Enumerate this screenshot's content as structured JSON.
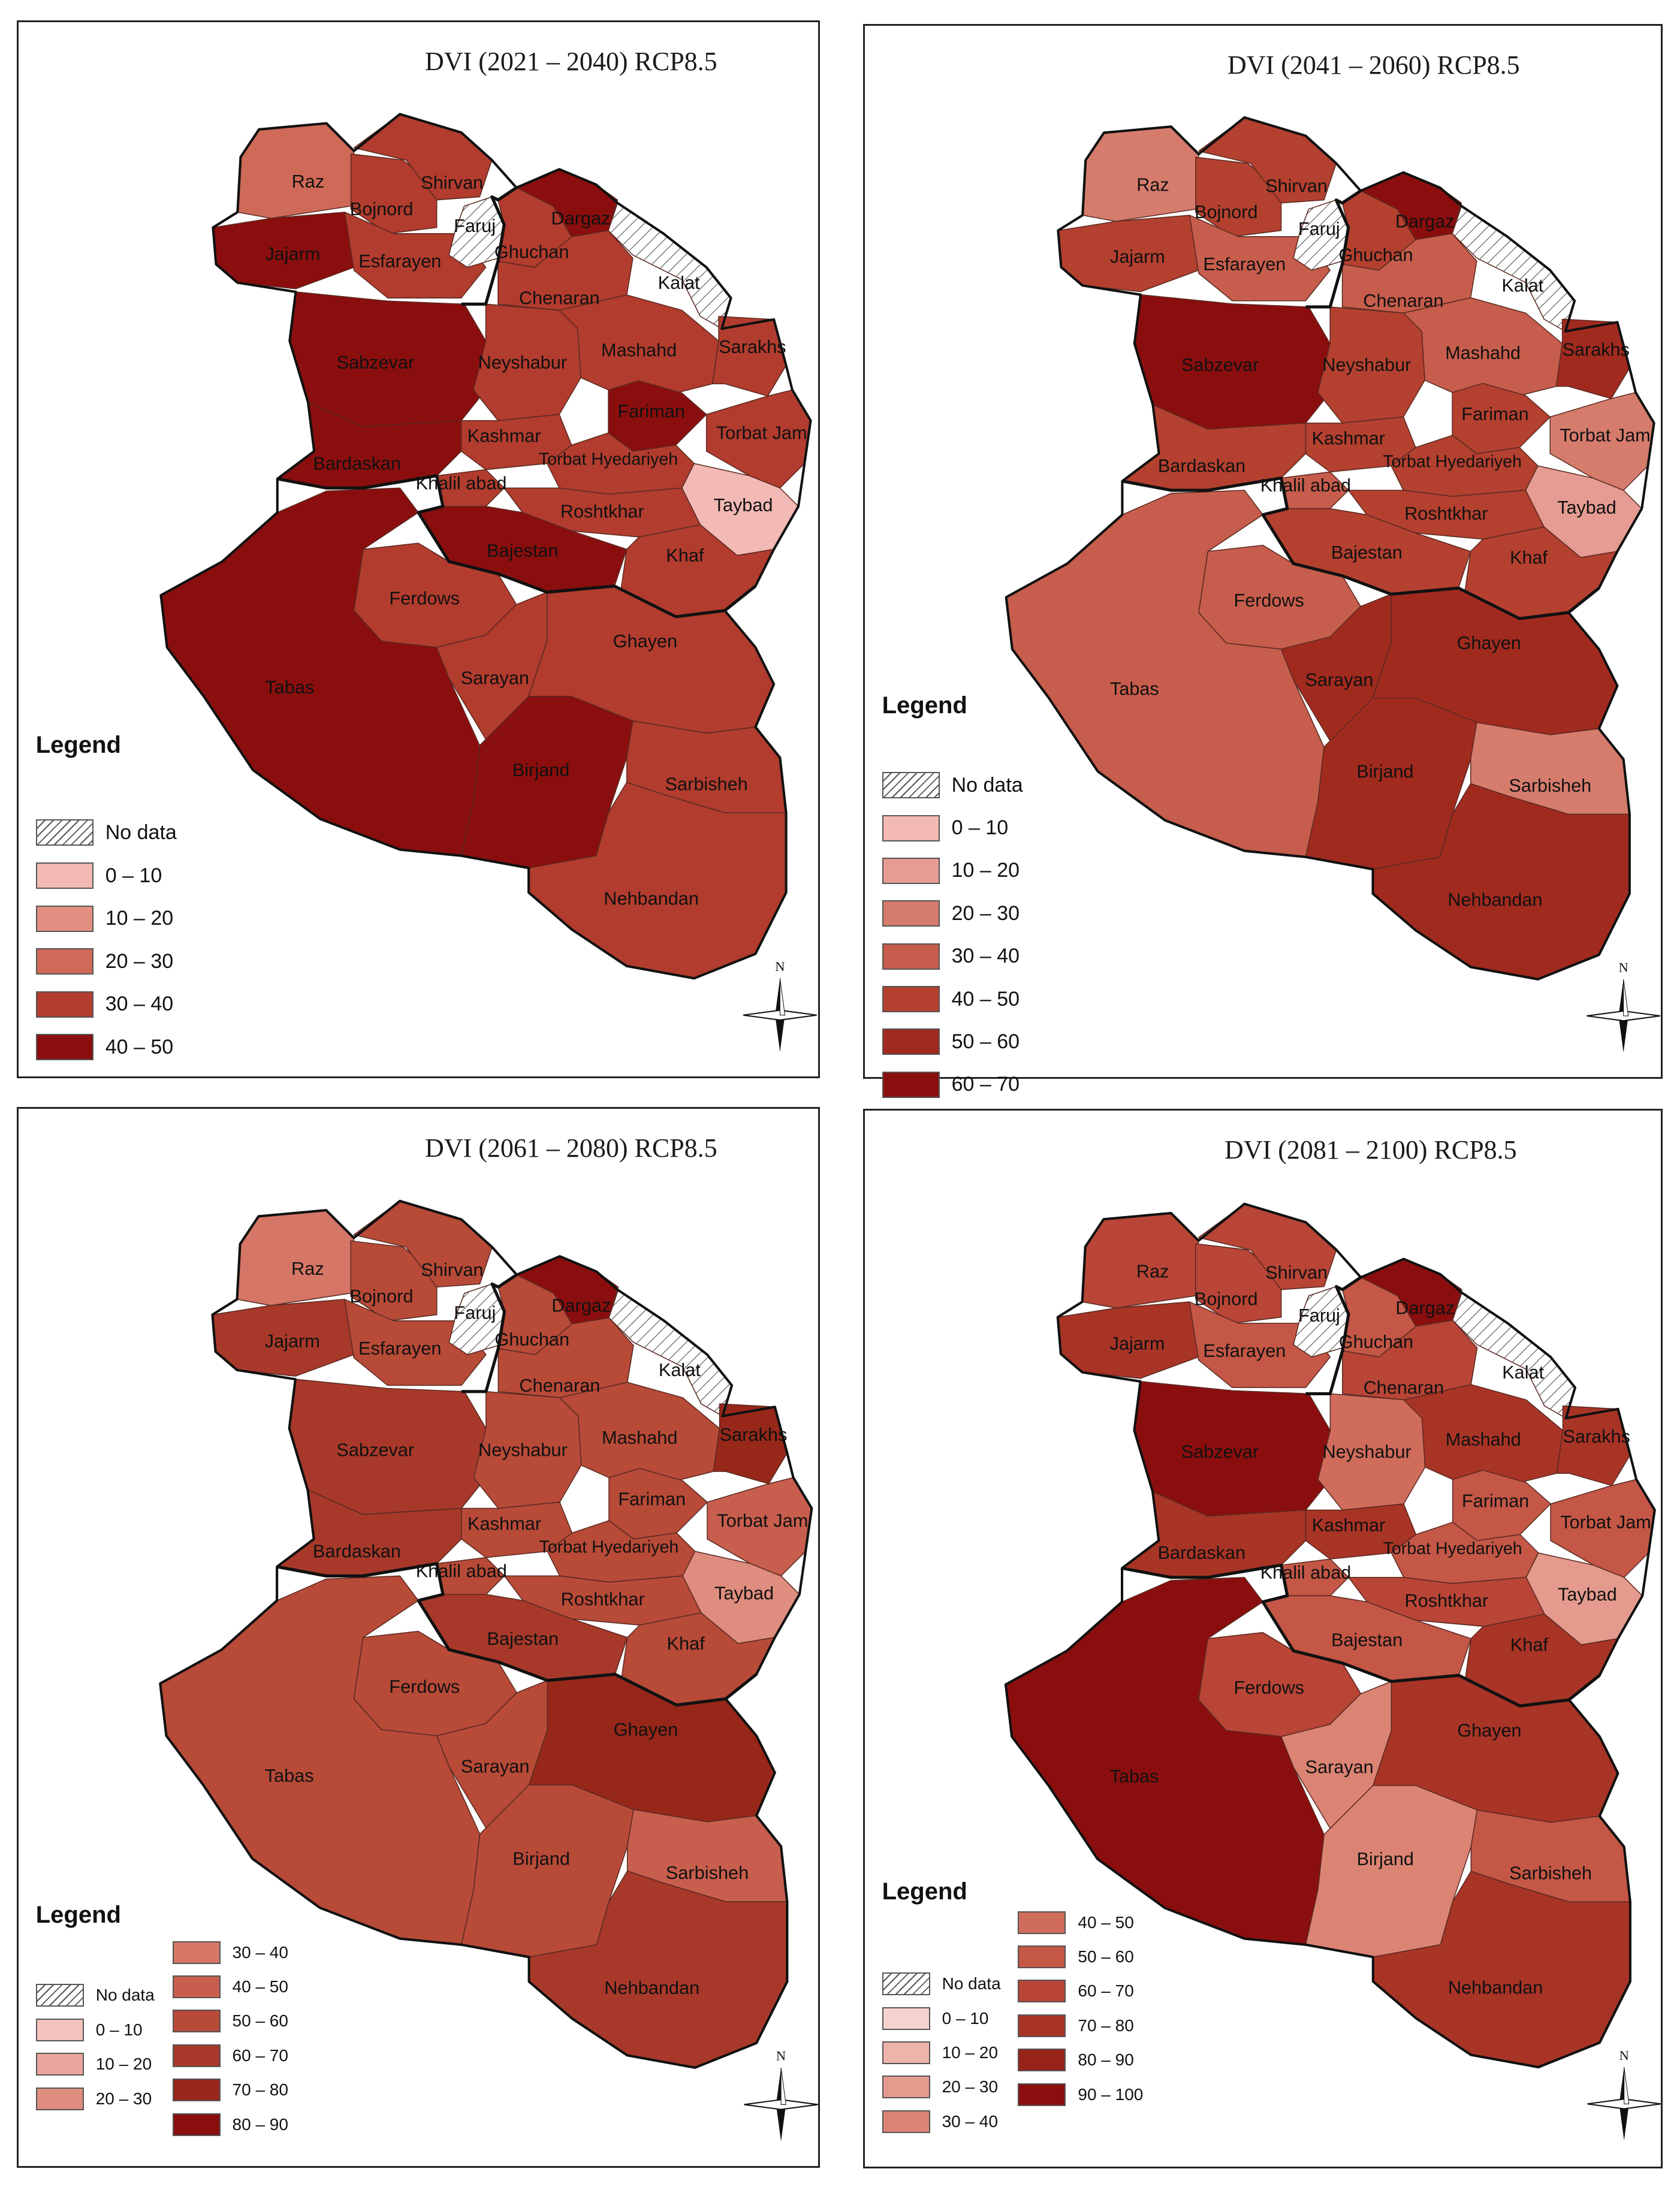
{
  "panels": [
    {
      "id": "p1",
      "title": "DVI (2021 – 2040) RCP8.5",
      "legend_title": "Legend",
      "legend": [
        {
          "label": "No data",
          "color": "hatch"
        },
        {
          "label": "0 – 10",
          "color": "#f3b9b4"
        },
        {
          "label": "10 – 20",
          "color": "#e39082"
        },
        {
          "label": "20 – 30",
          "color": "#cf6a58"
        },
        {
          "label": "30 – 40",
          "color": "#b23c2e"
        },
        {
          "label": "40 – 50",
          "color": "#8b0e0e"
        }
      ],
      "regions": {
        "Raz": "#cf6a58",
        "Bojnord": "#b23c2e",
        "Shirvan": "#b23c2e",
        "Jajarm": "#8b0e0e",
        "Esfarayen": "#b23c2e",
        "Faruj": "nodata",
        "Ghuchan": "#b23c2e",
        "Dargaz": "#8b0e0e",
        "Kalat": "nodata",
        "Chenaran": "#b23c2e",
        "Sabzevar": "#8b0e0e",
        "Neyshabur": "#b23c2e",
        "Mashahd": "#b23c2e",
        "Sarakhs": "#b23c2e",
        "Fariman": "#8b0e0e",
        "Torbat Jam": "#b23c2e",
        "Kashmar": "#b23c2e",
        "Bardaskan": "#8b0e0e",
        "Khalil abad": "#b23c2e",
        "Torbat Hyedariyeh": "#b23c2e",
        "Taybad": "#f3b9b4",
        "Roshtkhar": "#b23c2e",
        "Bajestan": "#8b0e0e",
        "Khaf": "#b23c2e",
        "Ferdows": "#b23c2e",
        "Tabas": "#8b0e0e",
        "Sarayan": "#b23c2e",
        "Ghayen": "#b23c2e",
        "Birjand": "#8b0e0e",
        "Sarbisheh": "#b23c2e",
        "Nehbandan": "#b23c2e"
      }
    },
    {
      "id": "p2",
      "title": "DVI (2041 – 2060) RCP8.5",
      "legend_title": "Legend",
      "legend": [
        {
          "label": "No data",
          "color": "hatch"
        },
        {
          "label": "0 – 10",
          "color": "#f3b9b4"
        },
        {
          "label": "10 – 20",
          "color": "#e69c92"
        },
        {
          "label": "20 – 30",
          "color": "#d67c6c"
        },
        {
          "label": "30 – 40",
          "color": "#c75d4c"
        },
        {
          "label": "40 – 50",
          "color": "#b4402f"
        },
        {
          "label": "50 – 60",
          "color": "#a12a1f"
        },
        {
          "label": "60 – 70",
          "color": "#8b0e0e"
        }
      ],
      "regions": {
        "Raz": "#d67c6c",
        "Bojnord": "#b4402f",
        "Shirvan": "#b4402f",
        "Jajarm": "#b4402f",
        "Esfarayen": "#c75d4c",
        "Faruj": "nodata",
        "Ghuchan": "#b4402f",
        "Dargaz": "#8b0e0e",
        "Kalat": "nodata",
        "Chenaran": "#c75d4c",
        "Sabzevar": "#8b0e0e",
        "Neyshabur": "#b4402f",
        "Mashahd": "#c75d4c",
        "Sarakhs": "#a12a1f",
        "Fariman": "#b4402f",
        "Torbat Jam": "#d67c6c",
        "Kashmar": "#b4402f",
        "Bardaskan": "#b4402f",
        "Khalil abad": "#c75d4c",
        "Torbat Hyedariyeh": "#b4402f",
        "Taybad": "#e69c92",
        "Roshtkhar": "#b4402f",
        "Bajestan": "#b4402f",
        "Khaf": "#b4402f",
        "Ferdows": "#c75d4c",
        "Tabas": "#c75d4c",
        "Sarayan": "#a12a1f",
        "Ghayen": "#a12a1f",
        "Birjand": "#a12a1f",
        "Sarbisheh": "#d67c6c",
        "Nehbandan": "#a12a1f"
      }
    },
    {
      "id": "p3",
      "title": "DVI (2061 – 2080) RCP8.5",
      "legend_title": "Legend",
      "legend": [
        {
          "label": "No data",
          "color": "hatch"
        },
        {
          "label": "0 – 10",
          "color": "#f3c2be"
        },
        {
          "label": "10 – 20",
          "color": "#eaa59c"
        },
        {
          "label": "20 – 30",
          "color": "#df8d7e"
        },
        {
          "label": "30 – 40",
          "color": "#d57666"
        },
        {
          "label": "40 – 50",
          "color": "#c85e4d"
        },
        {
          "label": "50 – 60",
          "color": "#b84a38"
        },
        {
          "label": "60 – 70",
          "color": "#a8392a"
        },
        {
          "label": "70 – 80",
          "color": "#962719"
        },
        {
          "label": "80 – 90",
          "color": "#8b0e0e"
        }
      ],
      "regions": {
        "Raz": "#d57666",
        "Bojnord": "#b84a38",
        "Shirvan": "#b84a38",
        "Jajarm": "#a8392a",
        "Esfarayen": "#b84a38",
        "Faruj": "nodata",
        "Ghuchan": "#b84a38",
        "Dargaz": "#8b0e0e",
        "Kalat": "nodata",
        "Chenaran": "#b84a38",
        "Sabzevar": "#a8392a",
        "Neyshabur": "#b84a38",
        "Mashahd": "#b84a38",
        "Sarakhs": "#962719",
        "Fariman": "#b84a38",
        "Torbat Jam": "#c85e4d",
        "Kashmar": "#b84a38",
        "Bardaskan": "#a8392a",
        "Khalil abad": "#b84a38",
        "Torbat Hyedariyeh": "#b84a38",
        "Taybad": "#df8d7e",
        "Roshtkhar": "#b84a38",
        "Bajestan": "#a8392a",
        "Khaf": "#b84a38",
        "Ferdows": "#b84a38",
        "Tabas": "#b84a38",
        "Sarayan": "#b84a38",
        "Ghayen": "#962719",
        "Birjand": "#b84a38",
        "Sarbisheh": "#c85e4d",
        "Nehbandan": "#a8392a"
      }
    },
    {
      "id": "p4",
      "title": "DVI (2081 – 2100) RCP8.5",
      "legend_title": "Legend",
      "legend": [
        {
          "label": "No data",
          "color": "hatch"
        },
        {
          "label": "0 – 10",
          "color": "#f6d2cf"
        },
        {
          "label": "10 – 20",
          "color": "#eeb3ab"
        },
        {
          "label": "20 – 30",
          "color": "#e59a8e"
        },
        {
          "label": "30 – 40",
          "color": "#dc8474"
        },
        {
          "label": "40 – 50",
          "color": "#d06c5b"
        },
        {
          "label": "50 – 60",
          "color": "#c45746"
        },
        {
          "label": "60 – 70",
          "color": "#b84536"
        },
        {
          "label": "70 – 80",
          "color": "#a83426"
        },
        {
          "label": "80 – 90",
          "color": "#962219"
        },
        {
          "label": "90 – 100",
          "color": "#8b0e0e"
        }
      ],
      "regions": {
        "Raz": "#b84536",
        "Bojnord": "#b84536",
        "Shirvan": "#b84536",
        "Jajarm": "#a83426",
        "Esfarayen": "#c45746",
        "Faruj": "nodata",
        "Ghuchan": "#c45746",
        "Dargaz": "#8b0e0e",
        "Kalat": "nodata",
        "Chenaran": "#b84536",
        "Sabzevar": "#8b0e0e",
        "Neyshabur": "#d06c5b",
        "Mashahd": "#a83426",
        "Sarakhs": "#a83426",
        "Fariman": "#c45746",
        "Torbat Jam": "#c45746",
        "Kashmar": "#a83426",
        "Bardaskan": "#a83426",
        "Khalil abad": "#c45746",
        "Torbat Hyedariyeh": "#c45746",
        "Taybad": "#e59a8e",
        "Roshtkhar": "#b84536",
        "Bajestan": "#c45746",
        "Khaf": "#a83426",
        "Ferdows": "#b84536",
        "Tabas": "#8b0e0e",
        "Sarayan": "#dc8474",
        "Ghayen": "#a83426",
        "Birjand": "#dc8474",
        "Sarbisheh": "#c45746",
        "Nehbandan": "#a83426"
      }
    }
  ],
  "compass_label": "N"
}
